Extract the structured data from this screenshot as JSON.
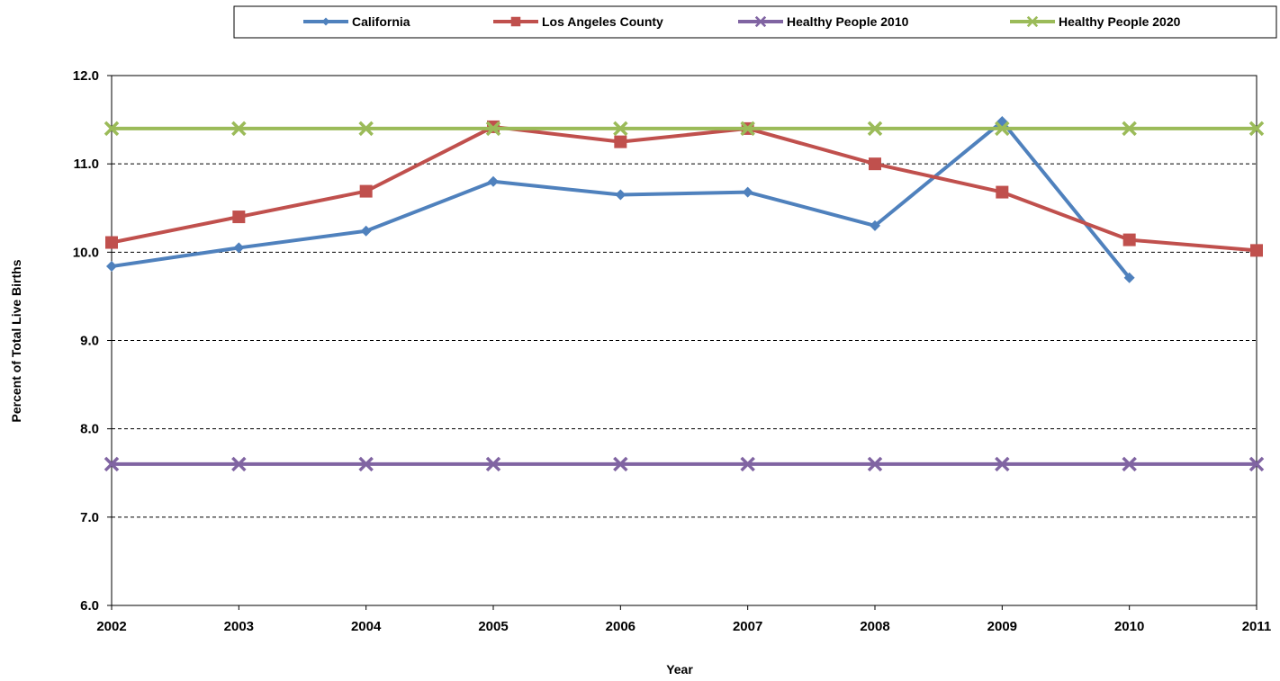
{
  "chart_data": {
    "type": "line",
    "title": "",
    "xlabel": "Year",
    "ylabel": "Percent of Total Live Births",
    "x": [
      "2002",
      "2003",
      "2004",
      "2005",
      "2006",
      "2007",
      "2008",
      "2009",
      "2010",
      "2011"
    ],
    "ylim": [
      6.0,
      12.0
    ],
    "yticks": [
      "6.0",
      "7.0",
      "8.0",
      "9.0",
      "10.0",
      "11.0",
      "12.0"
    ],
    "grid": "horizontal dashed",
    "legend_position": "top",
    "series": [
      {
        "name": "California",
        "color": "#4F81BD",
        "marker": "diamond",
        "values": [
          9.84,
          10.05,
          10.24,
          10.8,
          10.65,
          10.68,
          10.3,
          11.48,
          9.71,
          null
        ]
      },
      {
        "name": "Los Angeles County",
        "color": "#C0504D",
        "marker": "square",
        "values": [
          10.11,
          10.4,
          10.69,
          11.42,
          11.25,
          11.4,
          11.0,
          10.68,
          10.14,
          10.02
        ]
      },
      {
        "name": "Healthy People 2010",
        "color": "#8064A2",
        "marker": "x",
        "values": [
          7.6,
          7.6,
          7.6,
          7.6,
          7.6,
          7.6,
          7.6,
          7.6,
          7.6,
          7.6
        ]
      },
      {
        "name": "Healthy People 2020",
        "color": "#9BBB59",
        "marker": "x",
        "values": [
          11.4,
          11.4,
          11.4,
          11.4,
          11.4,
          11.4,
          11.4,
          11.4,
          11.4,
          11.4
        ]
      }
    ]
  }
}
